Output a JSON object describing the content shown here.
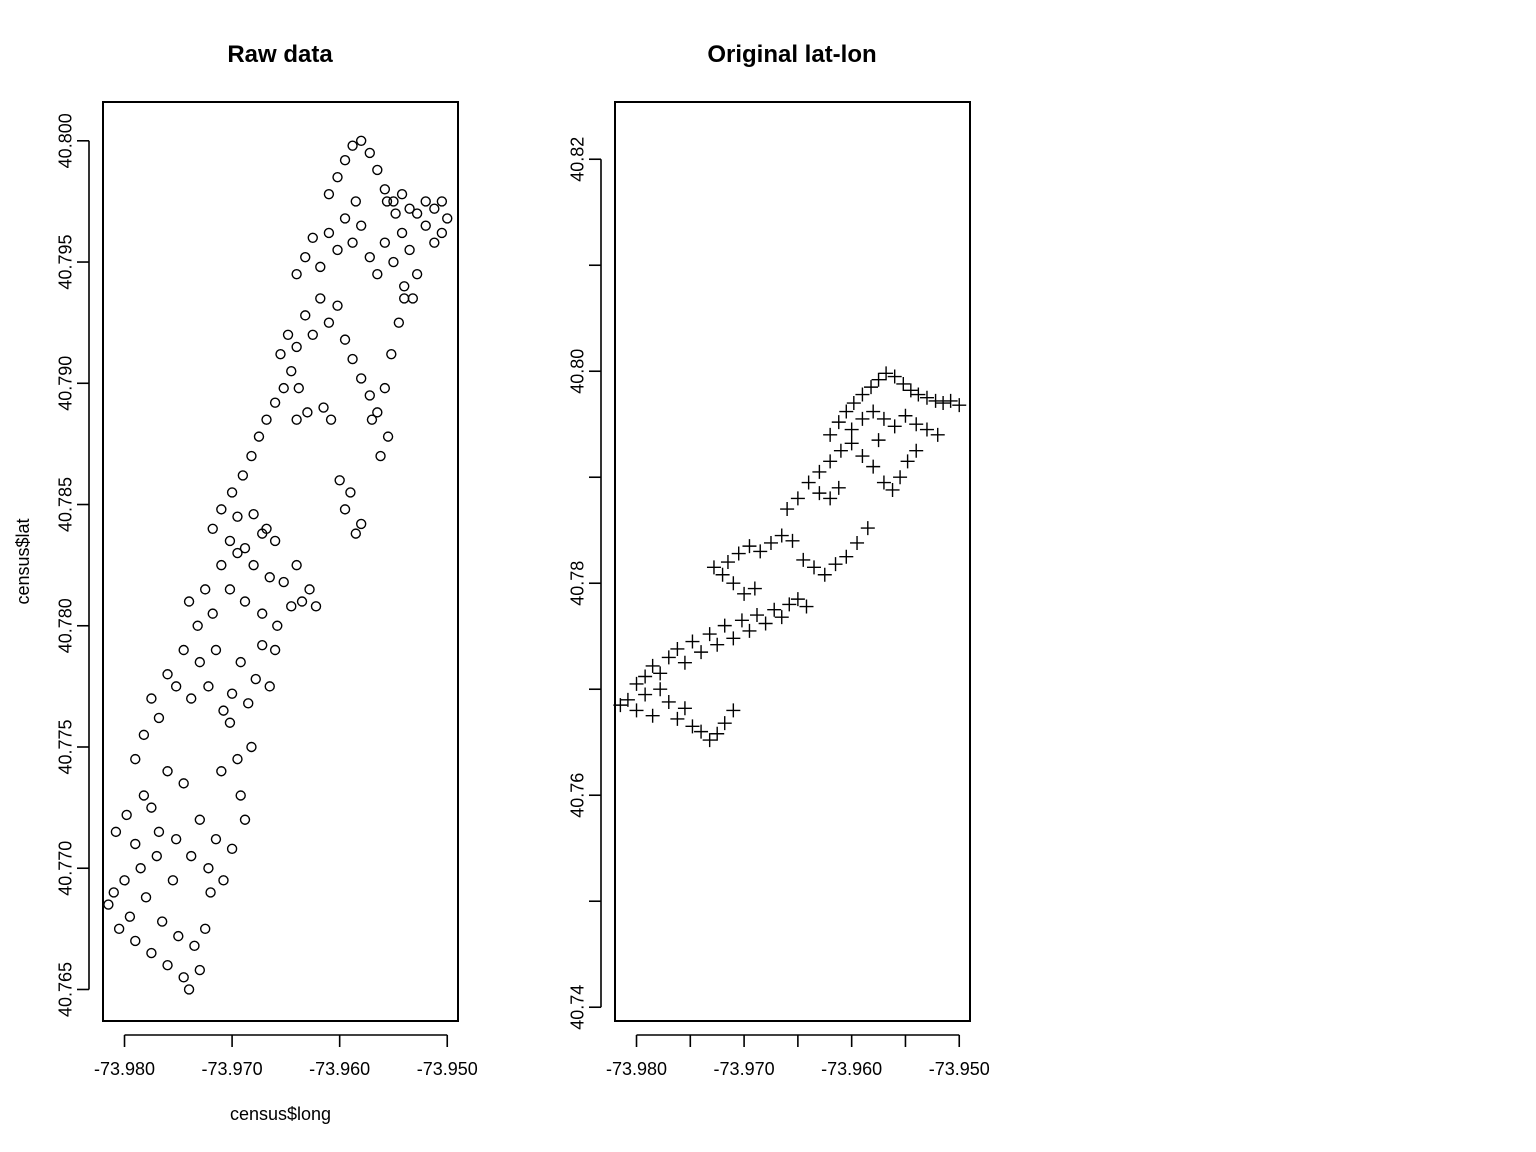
{
  "chart_data": [
    {
      "type": "scatter",
      "title": "Raw data",
      "xlabel": "census$long",
      "ylabel": "census$lat",
      "xlim": [
        -73.982,
        -73.949
      ],
      "ylim": [
        40.7637,
        40.8016
      ],
      "x_ticks": [
        -73.98,
        -73.97,
        -73.96,
        -73.95
      ],
      "x_tick_labels": [
        "-73.980",
        "-73.970",
        "-73.960",
        "-73.950"
      ],
      "y_ticks": [
        40.765,
        40.77,
        40.775,
        40.78,
        40.785,
        40.79,
        40.795,
        40.8
      ],
      "y_tick_labels": [
        "40.765",
        "40.770",
        "40.775",
        "40.780",
        "40.785",
        "40.790",
        "40.795",
        "40.800"
      ],
      "marker": "circle",
      "grid": false,
      "points": [
        [
          -73.9815,
          40.7685
        ],
        [
          -73.981,
          40.769
        ],
        [
          -73.9805,
          40.7675
        ],
        [
          -73.98,
          40.7695
        ],
        [
          -73.9795,
          40.768
        ],
        [
          -73.979,
          40.767
        ],
        [
          -73.9785,
          40.77
        ],
        [
          -73.978,
          40.7688
        ],
        [
          -73.9775,
          40.7665
        ],
        [
          -73.977,
          40.7705
        ],
        [
          -73.9765,
          40.7678
        ],
        [
          -73.976,
          40.766
        ],
        [
          -73.9755,
          40.7695
        ],
        [
          -73.975,
          40.7672
        ],
        [
          -73.9745,
          40.7655
        ],
        [
          -73.974,
          40.765
        ],
        [
          -73.9735,
          40.7668
        ],
        [
          -73.973,
          40.7658
        ],
        [
          -73.9725,
          40.7675
        ],
        [
          -73.972,
          40.769
        ],
        [
          -73.9808,
          40.7715
        ],
        [
          -73.9798,
          40.7722
        ],
        [
          -73.979,
          40.771
        ],
        [
          -73.9782,
          40.773
        ],
        [
          -73.9775,
          40.7725
        ],
        [
          -73.9768,
          40.7715
        ],
        [
          -73.976,
          40.774
        ],
        [
          -73.9752,
          40.7712
        ],
        [
          -73.9745,
          40.7735
        ],
        [
          -73.9738,
          40.7705
        ],
        [
          -73.973,
          40.772
        ],
        [
          -73.9722,
          40.77
        ],
        [
          -73.9715,
          40.7712
        ],
        [
          -73.9708,
          40.7695
        ],
        [
          -73.97,
          40.7708
        ],
        [
          -73.9692,
          40.773
        ],
        [
          -73.9688,
          40.772
        ],
        [
          -73.9695,
          40.7745
        ],
        [
          -73.9702,
          40.776
        ],
        [
          -73.971,
          40.774
        ],
        [
          -73.979,
          40.7745
        ],
        [
          -73.9782,
          40.7755
        ],
        [
          -73.9775,
          40.777
        ],
        [
          -73.9768,
          40.7762
        ],
        [
          -73.976,
          40.778
        ],
        [
          -73.9752,
          40.7775
        ],
        [
          -73.9745,
          40.779
        ],
        [
          -73.9738,
          40.777
        ],
        [
          -73.973,
          40.7785
        ],
        [
          -73.9722,
          40.7775
        ],
        [
          -73.9715,
          40.779
        ],
        [
          -73.9708,
          40.7765
        ],
        [
          -73.97,
          40.7772
        ],
        [
          -73.9692,
          40.7785
        ],
        [
          -73.9685,
          40.7768
        ],
        [
          -73.9678,
          40.7778
        ],
        [
          -73.9672,
          40.7792
        ],
        [
          -73.9665,
          40.7775
        ],
        [
          -73.966,
          40.779
        ],
        [
          -73.9682,
          40.775
        ],
        [
          -73.974,
          40.781
        ],
        [
          -73.9732,
          40.78
        ],
        [
          -73.9725,
          40.7815
        ],
        [
          -73.9718,
          40.7805
        ],
        [
          -73.971,
          40.7825
        ],
        [
          -73.9702,
          40.7815
        ],
        [
          -73.9695,
          40.783
        ],
        [
          -73.9688,
          40.781
        ],
        [
          -73.968,
          40.7825
        ],
        [
          -73.9672,
          40.7805
        ],
        [
          -73.9665,
          40.782
        ],
        [
          -73.9658,
          40.78
        ],
        [
          -73.9652,
          40.7818
        ],
        [
          -73.9645,
          40.7808
        ],
        [
          -73.964,
          40.7825
        ],
        [
          -73.9635,
          40.781
        ],
        [
          -73.9628,
          40.7815
        ],
        [
          -73.9622,
          40.7808
        ],
        [
          -73.966,
          40.7835
        ],
        [
          -73.9668,
          40.784
        ],
        [
          -73.9718,
          40.784
        ],
        [
          -73.971,
          40.7848
        ],
        [
          -73.9702,
          40.7835
        ],
        [
          -73.9695,
          40.7845
        ],
        [
          -73.9688,
          40.7832
        ],
        [
          -73.968,
          40.7846
        ],
        [
          -73.9672,
          40.7838
        ],
        [
          -73.97,
          40.7855
        ],
        [
          -73.969,
          40.7862
        ],
        [
          -73.9682,
          40.787
        ],
        [
          -73.9675,
          40.7878
        ],
        [
          -73.9668,
          40.7885
        ],
        [
          -73.966,
          40.7892
        ],
        [
          -73.9652,
          40.7898
        ],
        [
          -73.9645,
          40.7905
        ],
        [
          -73.9638,
          40.7898
        ],
        [
          -73.963,
          40.7888
        ],
        [
          -73.964,
          40.7885
        ],
        [
          -73.9615,
          40.789
        ],
        [
          -73.9608,
          40.7885
        ],
        [
          -73.96,
          40.786
        ],
        [
          -73.9595,
          40.7848
        ],
        [
          -73.959,
          40.7855
        ],
        [
          -73.9585,
          40.7838
        ],
        [
          -73.958,
          40.7842
        ],
        [
          -73.9655,
          40.7912
        ],
        [
          -73.9648,
          40.792
        ],
        [
          -73.964,
          40.7915
        ],
        [
          -73.9632,
          40.7928
        ],
        [
          -73.9625,
          40.792
        ],
        [
          -73.9618,
          40.7935
        ],
        [
          -73.961,
          40.7925
        ],
        [
          -73.9602,
          40.7932
        ],
        [
          -73.9595,
          40.7918
        ],
        [
          -73.9588,
          40.791
        ],
        [
          -73.958,
          40.7902
        ],
        [
          -73.9572,
          40.7895
        ],
        [
          -73.9565,
          40.7888
        ],
        [
          -73.9558,
          40.7898
        ],
        [
          -73.9552,
          40.7912
        ],
        [
          -73.9545,
          40.7925
        ],
        [
          -73.954,
          40.7935
        ],
        [
          -73.9555,
          40.7878
        ],
        [
          -73.9562,
          40.787
        ],
        [
          -73.957,
          40.7885
        ],
        [
          -73.964,
          40.7945
        ],
        [
          -73.9632,
          40.7952
        ],
        [
          -73.9625,
          40.796
        ],
        [
          -73.9618,
          40.7948
        ],
        [
          -73.961,
          40.7962
        ],
        [
          -73.9602,
          40.7955
        ],
        [
          -73.9595,
          40.7968
        ],
        [
          -73.9588,
          40.7958
        ],
        [
          -73.958,
          40.7965
        ],
        [
          -73.9572,
          40.7952
        ],
        [
          -73.9565,
          40.7945
        ],
        [
          -73.9558,
          40.7958
        ],
        [
          -73.955,
          40.795
        ],
        [
          -73.9542,
          40.7962
        ],
        [
          -73.9535,
          40.7955
        ],
        [
          -73.9528,
          40.7945
        ],
        [
          -73.954,
          40.794
        ],
        [
          -73.9532,
          40.7935
        ],
        [
          -73.9548,
          40.797
        ],
        [
          -73.9556,
          40.7975
        ],
        [
          -73.961,
          40.7978
        ],
        [
          -73.9602,
          40.7985
        ],
        [
          -73.9595,
          40.7992
        ],
        [
          -73.9588,
          40.7998
        ],
        [
          -73.958,
          40.8
        ],
        [
          -73.9572,
          40.7995
        ],
        [
          -73.9565,
          40.7988
        ],
        [
          -73.9558,
          40.798
        ],
        [
          -73.955,
          40.7975
        ],
        [
          -73.9542,
          40.7978
        ],
        [
          -73.9535,
          40.7972
        ],
        [
          -73.9528,
          40.797
        ],
        [
          -73.952,
          40.7975
        ],
        [
          -73.9512,
          40.7972
        ],
        [
          -73.9505,
          40.7975
        ],
        [
          -73.95,
          40.7968
        ],
        [
          -73.9505,
          40.7962
        ],
        [
          -73.9512,
          40.7958
        ],
        [
          -73.952,
          40.7965
        ],
        [
          -73.9585,
          40.7975
        ]
      ]
    },
    {
      "type": "scatter",
      "title": "Original lat-lon",
      "xlabel": "",
      "ylabel": "",
      "xlim": [
        -73.982,
        -73.949
      ],
      "ylim": [
        40.7387,
        40.8254
      ],
      "x_ticks": [
        -73.98,
        -73.975,
        -73.97,
        -73.965,
        -73.96,
        -73.955,
        -73.95
      ],
      "x_tick_labels": [
        "-73.980",
        "",
        "-73.970",
        "",
        "-73.960",
        "",
        "-73.950"
      ],
      "y_ticks": [
        40.74,
        40.75,
        40.76,
        40.77,
        40.78,
        40.79,
        40.8,
        40.81,
        40.82
      ],
      "y_tick_labels": [
        "40.74",
        "",
        "40.76",
        "",
        "40.78",
        "",
        "40.80",
        "",
        "40.82"
      ],
      "marker": "plus",
      "grid": false,
      "points": [
        [
          -73.9815,
          40.7685
        ],
        [
          -73.9808,
          40.769
        ],
        [
          -73.98,
          40.768
        ],
        [
          -73.9792,
          40.7695
        ],
        [
          -73.9785,
          40.7675
        ],
        [
          -73.9778,
          40.77
        ],
        [
          -73.977,
          40.7688
        ],
        [
          -73.9762,
          40.7672
        ],
        [
          -73.9755,
          40.7682
        ],
        [
          -73.9748,
          40.7665
        ],
        [
          -73.974,
          40.766
        ],
        [
          -73.9732,
          40.7652
        ],
        [
          -73.9725,
          40.7658
        ],
        [
          -73.9718,
          40.7668
        ],
        [
          -73.971,
          40.768
        ],
        [
          -73.98,
          40.7705
        ],
        [
          -73.9792,
          40.7712
        ],
        [
          -73.9785,
          40.7722
        ],
        [
          -73.9778,
          40.7715
        ],
        [
          -73.977,
          40.773
        ],
        [
          -73.9762,
          40.7738
        ],
        [
          -73.9755,
          40.7725
        ],
        [
          -73.9748,
          40.7745
        ],
        [
          -73.974,
          40.7735
        ],
        [
          -73.9732,
          40.7752
        ],
        [
          -73.9725,
          40.7742
        ],
        [
          -73.9718,
          40.776
        ],
        [
          -73.971,
          40.7748
        ],
        [
          -73.9702,
          40.7765
        ],
        [
          -73.9695,
          40.7755
        ],
        [
          -73.9688,
          40.777
        ],
        [
          -73.968,
          40.7762
        ],
        [
          -73.9672,
          40.7775
        ],
        [
          -73.9665,
          40.7768
        ],
        [
          -73.9658,
          40.778
        ],
        [
          -73.965,
          40.7785
        ],
        [
          -73.9642,
          40.7778
        ],
        [
          -73.969,
          40.7795
        ],
        [
          -73.97,
          40.779
        ],
        [
          -73.971,
          40.78
        ],
        [
          -73.972,
          40.7808
        ],
        [
          -73.9728,
          40.7815
        ],
        [
          -73.9715,
          40.782
        ],
        [
          -73.9705,
          40.7828
        ],
        [
          -73.9695,
          40.7835
        ],
        [
          -73.9685,
          40.783
        ],
        [
          -73.9675,
          40.7838
        ],
        [
          -73.9665,
          40.7845
        ],
        [
          -73.9655,
          40.784
        ],
        [
          -73.9645,
          40.7822
        ],
        [
          -73.9635,
          40.7815
        ],
        [
          -73.9625,
          40.7808
        ],
        [
          -73.9615,
          40.7818
        ],
        [
          -73.9605,
          40.7825
        ],
        [
          -73.9595,
          40.7838
        ],
        [
          -73.9585,
          40.7852
        ],
        [
          -73.966,
          40.787
        ],
        [
          -73.965,
          40.788
        ],
        [
          -73.964,
          40.7895
        ],
        [
          -73.963,
          40.7905
        ],
        [
          -73.962,
          40.7915
        ],
        [
          -73.961,
          40.7925
        ],
        [
          -73.96,
          40.7932
        ],
        [
          -73.959,
          40.792
        ],
        [
          -73.958,
          40.791
        ],
        [
          -73.957,
          40.7895
        ],
        [
          -73.9562,
          40.7888
        ],
        [
          -73.9555,
          40.79
        ],
        [
          -73.9548,
          40.7915
        ],
        [
          -73.954,
          40.7925
        ],
        [
          -73.963,
          40.7885
        ],
        [
          -73.962,
          40.788
        ],
        [
          -73.9612,
          40.789
        ],
        [
          -73.962,
          40.794
        ],
        [
          -73.9612,
          40.7952
        ],
        [
          -73.9605,
          40.7962
        ],
        [
          -73.9598,
          40.797
        ],
        [
          -73.959,
          40.7978
        ],
        [
          -73.9582,
          40.7985
        ],
        [
          -73.9575,
          40.7992
        ],
        [
          -73.9568,
          40.7998
        ],
        [
          -73.956,
          40.7995
        ],
        [
          -73.9552,
          40.7988
        ],
        [
          -73.9545,
          40.7982
        ],
        [
          -73.9538,
          40.7978
        ],
        [
          -73.953,
          40.7975
        ],
        [
          -73.9522,
          40.7972
        ],
        [
          -73.9515,
          40.797
        ],
        [
          -73.9508,
          40.7972
        ],
        [
          -73.95,
          40.7968
        ],
        [
          -73.955,
          40.7958
        ],
        [
          -73.954,
          40.795
        ],
        [
          -73.953,
          40.7945
        ],
        [
          -73.952,
          40.794
        ],
        [
          -73.956,
          40.7948
        ],
        [
          -73.957,
          40.7955
        ],
        [
          -73.958,
          40.7962
        ],
        [
          -73.959,
          40.7955
        ],
        [
          -73.96,
          40.7945
        ],
        [
          -73.9575,
          40.7935
        ]
      ]
    }
  ]
}
